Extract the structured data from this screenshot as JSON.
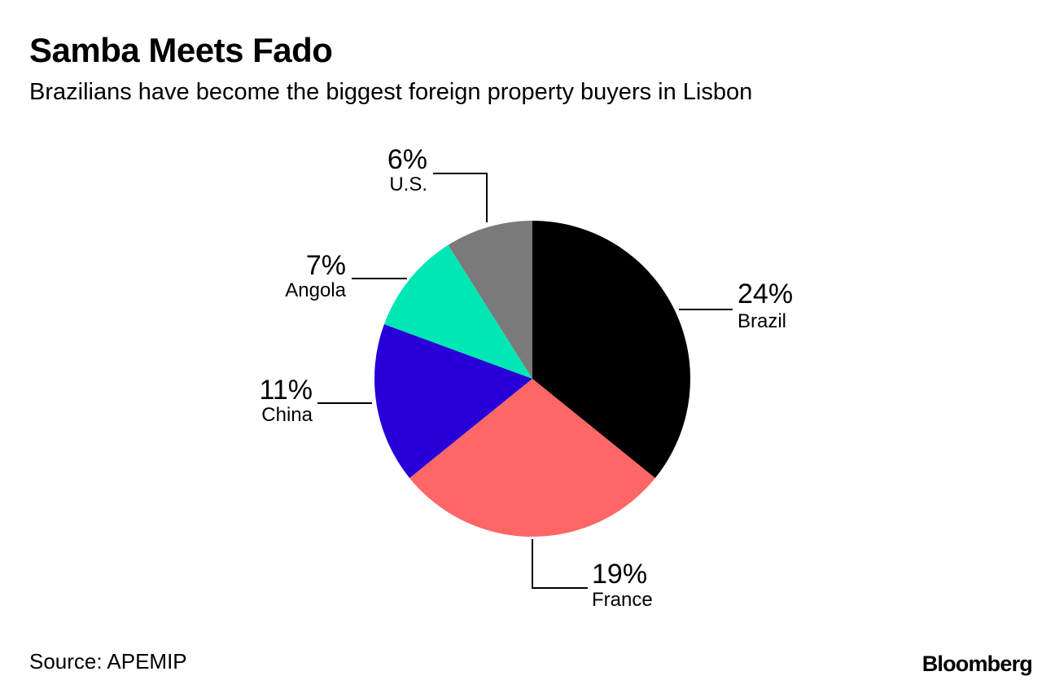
{
  "header": {
    "title": "Samba Meets Fado",
    "subtitle": "Brazilians have become the biggest foreign property buyers in Lisbon"
  },
  "footer": {
    "source": "Source: APEMIP",
    "brand": "Bloomberg"
  },
  "chart_data": {
    "type": "pie",
    "title": "Samba Meets Fado",
    "subtitle": "Brazilians have become the biggest foreign property buyers in Lisbon",
    "slices": [
      {
        "label": "Brazil",
        "value": 24,
        "display": "24%",
        "color": "#000000"
      },
      {
        "label": "France",
        "value": 19,
        "display": "19%",
        "color": "#ff6666"
      },
      {
        "label": "China",
        "value": 11,
        "display": "11%",
        "color": "#2800d7"
      },
      {
        "label": "Angola",
        "value": 7,
        "display": "7%",
        "color": "#00e6b4"
      },
      {
        "label": "U.S.",
        "value": 6,
        "display": "6%",
        "color": "#7a7a7a"
      }
    ],
    "start_angle": "12 o'clock",
    "direction": "clockwise",
    "legend": "none"
  }
}
